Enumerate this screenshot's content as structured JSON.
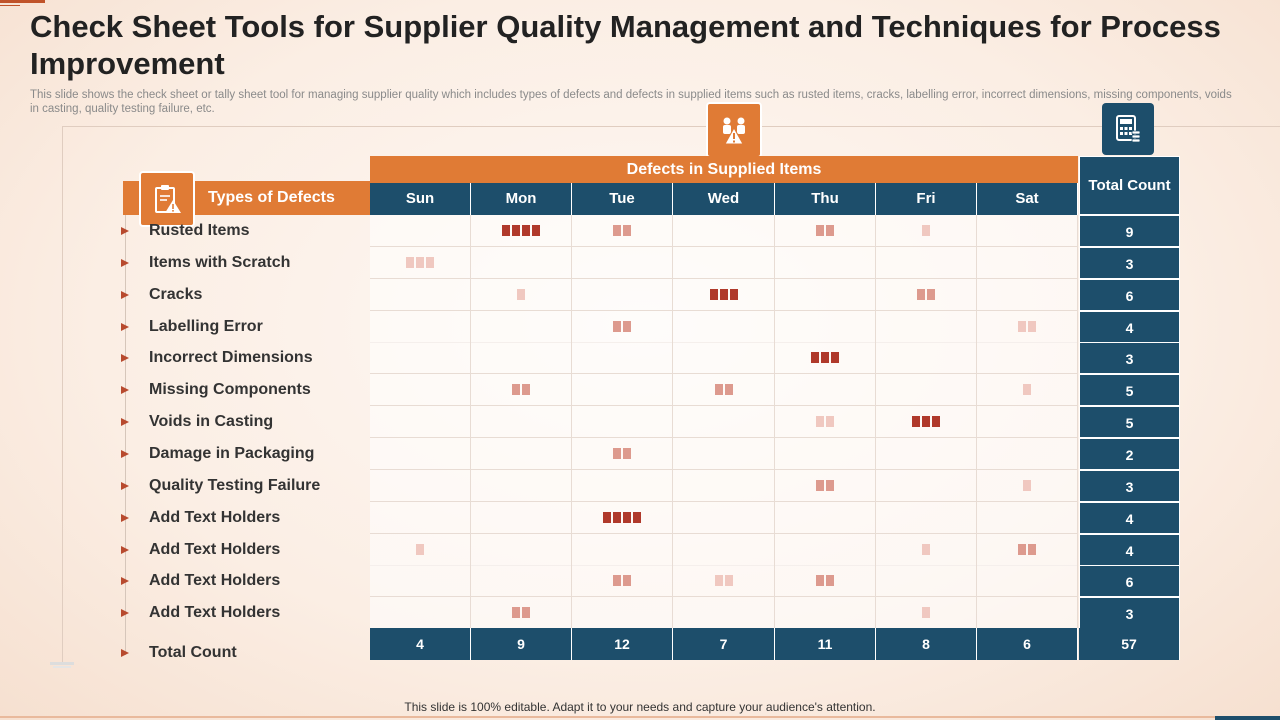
{
  "title": "Check Sheet Tools for Supplier Quality Management and Techniques for Process Improvement",
  "subtitle": "This slide shows the check sheet or tally sheet tool for managing supplier quality which includes types of defects and defects in supplied items such as rusted items, cracks, labelling error, incorrect dimensions, missing components, voids in casting, quality testing failure, etc.",
  "types_header": "Types of Defects",
  "defects_header": "Defects in Supplied Items",
  "total_header": "Total Count",
  "days": [
    "Sun",
    "Mon",
    "Tue",
    "Wed",
    "Thu",
    "Fri",
    "Sat"
  ],
  "rows": [
    {
      "label": "Rusted Items",
      "tallies": [
        0,
        4,
        2,
        0,
        2,
        1,
        0
      ],
      "shades": [
        "",
        "dark",
        "light",
        "",
        "light",
        "pale",
        ""
      ],
      "total": "9"
    },
    {
      "label": "Items with Scratch",
      "tallies": [
        3,
        0,
        0,
        0,
        0,
        0,
        0
      ],
      "shades": [
        "pale",
        "",
        "",
        "",
        "",
        "",
        ""
      ],
      "total": "3"
    },
    {
      "label": "Cracks",
      "tallies": [
        0,
        1,
        0,
        3,
        0,
        2,
        0
      ],
      "shades": [
        "",
        "pale",
        "",
        "dark",
        "",
        "light",
        ""
      ],
      "total": "6"
    },
    {
      "label": "Labelling Error",
      "tallies": [
        0,
        0,
        2,
        0,
        0,
        0,
        2
      ],
      "shades": [
        "",
        "",
        "light",
        "",
        "",
        "",
        "pale"
      ],
      "total": "4"
    },
    {
      "label": "Incorrect Dimensions",
      "tallies": [
        0,
        0,
        0,
        0,
        3,
        0,
        0
      ],
      "shades": [
        "",
        "",
        "",
        "",
        "dark",
        "",
        ""
      ],
      "total": "3"
    },
    {
      "label": "Missing Components",
      "tallies": [
        0,
        2,
        0,
        2,
        0,
        0,
        1
      ],
      "shades": [
        "",
        "light",
        "",
        "light",
        "",
        "",
        "pale"
      ],
      "total": "5"
    },
    {
      "label": "Voids in Casting",
      "tallies": [
        0,
        0,
        0,
        0,
        2,
        3,
        0
      ],
      "shades": [
        "",
        "",
        "",
        "",
        "pale",
        "dark",
        ""
      ],
      "total": "5"
    },
    {
      "label": "Damage in Packaging",
      "tallies": [
        0,
        0,
        2,
        0,
        0,
        0,
        0
      ],
      "shades": [
        "",
        "",
        "light",
        "",
        "",
        "",
        ""
      ],
      "total": "2"
    },
    {
      "label": "Quality Testing Failure",
      "tallies": [
        0,
        0,
        0,
        0,
        2,
        0,
        1
      ],
      "shades": [
        "",
        "",
        "",
        "",
        "light",
        "",
        "pale"
      ],
      "total": "3"
    },
    {
      "label": "Add Text Holders",
      "tallies": [
        0,
        0,
        4,
        0,
        0,
        0,
        0
      ],
      "shades": [
        "",
        "",
        "dark",
        "",
        "",
        "",
        ""
      ],
      "total": "4"
    },
    {
      "label": "Add Text Holders",
      "tallies": [
        1,
        0,
        0,
        0,
        0,
        1,
        2
      ],
      "shades": [
        "pale",
        "",
        "",
        "",
        "",
        "pale",
        "light"
      ],
      "total": "4"
    },
    {
      "label": "Add Text Holders",
      "tallies": [
        0,
        0,
        2,
        2,
        2,
        0,
        0
      ],
      "shades": [
        "",
        "",
        "light",
        "pale",
        "light",
        "",
        ""
      ],
      "total": "6"
    },
    {
      "label": "Add Text Holders",
      "tallies": [
        0,
        2,
        0,
        0,
        0,
        1,
        0
      ],
      "shades": [
        "",
        "light",
        "",
        "",
        "",
        "pale",
        ""
      ],
      "total": "3"
    }
  ],
  "total_count_label": "Total Count",
  "column_totals": [
    "4",
    "9",
    "12",
    "7",
    "11",
    "8",
    "6"
  ],
  "grand_total": "57",
  "footer": "This slide is 100% editable. Adapt it to your needs and capture your audience's attention.",
  "colors": {
    "orange": "#e07b35",
    "navy": "#1d4e6b",
    "tally_dark": "#b0392b",
    "tally_light": "#dd9a8e",
    "tally_pale": "#f0c8c0"
  },
  "icons": {
    "types": "clipboard-warning-icon",
    "defects": "workers-warning-icon",
    "total": "calculator-icon"
  }
}
